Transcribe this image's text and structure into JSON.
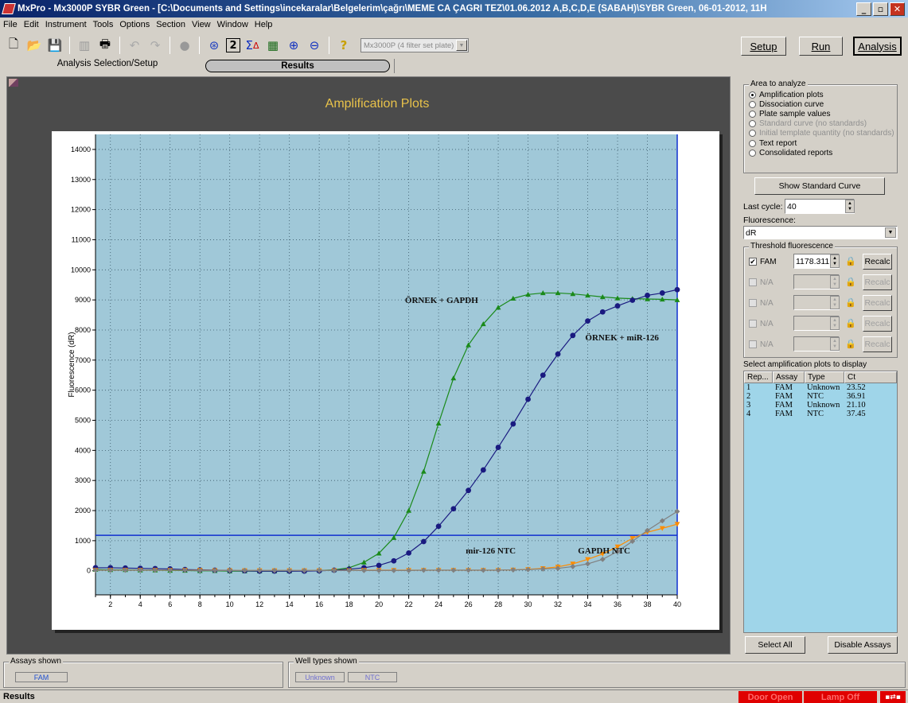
{
  "window": {
    "title": "MxPro - Mx3000P SYBR Green - [C:\\Documents and Settings\\incekaralar\\Belgelerim\\çağrı\\MEME CA ÇAĞRI TEZ\\01.06.2012 A,B,C,D,E (SABAH)\\SYBR Green, 06-01-2012, 11H",
    "minimize": "_",
    "maximize": "▫",
    "close": "✕"
  },
  "menu": [
    "File",
    "Edit",
    "Instrument",
    "Tools",
    "Options",
    "Section",
    "View",
    "Window",
    "Help"
  ],
  "toolbar": {
    "icons": [
      "new-file-icon",
      "open-folder-icon",
      "save-icon",
      "export-icon",
      "print-icon",
      "undo-icon",
      "redo-icon",
      "lamp-icon",
      "plate-icon",
      "help-number-icon",
      "sigma-delta-icon",
      "grid-icon",
      "zoom-in-icon",
      "zoom-out-icon",
      "question-icon"
    ],
    "plate_select": "Mx3000P (4 filter set plate)"
  },
  "modes": {
    "setup": "Setup",
    "run": "Run",
    "analysis": "Analysis"
  },
  "tabs": {
    "setup": "Analysis Selection/Setup",
    "results": "Results"
  },
  "chart_data": {
    "type": "line",
    "title": "Amplification Plots",
    "xlabel": "",
    "ylabel": "Fluorescence (dR)",
    "xlim": [
      1,
      40
    ],
    "ylim": [
      -800,
      14500
    ],
    "xticks": [
      2,
      4,
      6,
      8,
      10,
      12,
      14,
      16,
      18,
      20,
      22,
      24,
      26,
      28,
      30,
      32,
      34,
      36,
      38,
      40
    ],
    "yticks": [
      0,
      1000,
      2000,
      3000,
      4000,
      5000,
      6000,
      7000,
      8000,
      9000,
      10000,
      11000,
      12000,
      13000,
      14000
    ],
    "grid": true,
    "plot_background": "#a0c8d8",
    "threshold": {
      "value": 1178.311,
      "color": "#1030d0"
    },
    "x": [
      1,
      2,
      3,
      4,
      5,
      6,
      7,
      8,
      9,
      10,
      11,
      12,
      13,
      14,
      15,
      16,
      17,
      18,
      19,
      20,
      21,
      22,
      23,
      24,
      25,
      26,
      27,
      28,
      29,
      30,
      31,
      32,
      33,
      34,
      35,
      36,
      37,
      38,
      39,
      40
    ],
    "series": [
      {
        "color": "#1a8a1a",
        "marker": "triangle-up",
        "values": [
          40,
          30,
          30,
          20,
          20,
          10,
          10,
          0,
          0,
          -10,
          -10,
          -10,
          -10,
          -10,
          0,
          10,
          30,
          100,
          280,
          580,
          1100,
          2000,
          3300,
          4900,
          6400,
          7500,
          8200,
          8750,
          9050,
          9180,
          9230,
          9230,
          9200,
          9150,
          9100,
          9060,
          9040,
          9030,
          9020,
          9000
        ]
      },
      {
        "color": "#1a1a80",
        "marker": "circle",
        "values": [
          100,
          100,
          90,
          80,
          70,
          60,
          40,
          30,
          20,
          10,
          0,
          -10,
          -10,
          -10,
          -10,
          0,
          20,
          50,
          100,
          180,
          330,
          590,
          970,
          1480,
          2060,
          2670,
          3350,
          4100,
          4880,
          5700,
          6500,
          7200,
          7820,
          8300,
          8600,
          8800,
          8990,
          9150,
          9230,
          9340
        ]
      },
      {
        "color": "#ff8c00",
        "marker": "triangle-down",
        "values": [
          20,
          20,
          20,
          20,
          20,
          20,
          20,
          20,
          10,
          10,
          10,
          10,
          10,
          10,
          10,
          10,
          10,
          10,
          20,
          20,
          20,
          20,
          20,
          20,
          20,
          20,
          20,
          20,
          30,
          50,
          80,
          130,
          230,
          380,
          560,
          800,
          1080,
          1280,
          1410,
          1550
        ]
      },
      {
        "color": "#808080",
        "marker": "diamond",
        "values": [
          20,
          20,
          20,
          20,
          20,
          20,
          20,
          10,
          10,
          10,
          10,
          10,
          10,
          10,
          10,
          10,
          10,
          10,
          10,
          10,
          10,
          10,
          20,
          20,
          20,
          20,
          20,
          20,
          30,
          40,
          60,
          80,
          140,
          230,
          380,
          640,
          980,
          1340,
          1660,
          1970
        ]
      }
    ],
    "annotations": [
      {
        "text": "ÖRNEK + GAPDH",
        "x": 24.2,
        "y": 8900
      },
      {
        "text": "ÖRNEK + miR-126",
        "x": 36.3,
        "y": 7650
      },
      {
        "text": "mir-126 NTC",
        "x": 27.5,
        "y": 580
      },
      {
        "text": "GAPDH NTC",
        "x": 35.1,
        "y": 580
      }
    ]
  },
  "area_to_analyze": {
    "title": "Area to analyze",
    "options": [
      {
        "label": "Amplification plots",
        "selected": true,
        "enabled": true
      },
      {
        "label": "Dissociation curve",
        "selected": false,
        "enabled": true
      },
      {
        "label": "Plate sample values",
        "selected": false,
        "enabled": true
      },
      {
        "label": "Standard curve (no standards)",
        "selected": false,
        "enabled": false
      },
      {
        "label": "Initial template quantity (no standards)",
        "selected": false,
        "enabled": false
      },
      {
        "label": "Text report",
        "selected": false,
        "enabled": true
      },
      {
        "label": "Consolidated reports",
        "selected": false,
        "enabled": true
      }
    ]
  },
  "show_standard_curve": "Show Standard Curve",
  "last_cycle": {
    "label": "Last cycle:",
    "value": "40"
  },
  "fluorescence": {
    "label": "Fluorescence:",
    "value": "dR"
  },
  "threshold_fluorescence": {
    "title": "Threshold fluorescence",
    "rows": [
      {
        "label": "FAM",
        "checked": true,
        "enabled": true,
        "value": "1178.311",
        "recalc": "Recalc"
      },
      {
        "label": "N/A",
        "checked": false,
        "enabled": false,
        "value": "",
        "recalc": "Recalc"
      },
      {
        "label": "N/A",
        "checked": false,
        "enabled": false,
        "value": "",
        "recalc": "Recalc"
      },
      {
        "label": "N/A",
        "checked": false,
        "enabled": false,
        "value": "",
        "recalc": "Recalc"
      },
      {
        "label": "N/A",
        "checked": false,
        "enabled": false,
        "value": "",
        "recalc": "Recalc"
      }
    ]
  },
  "plots_list": {
    "title": "Select amplification plots to display",
    "headers": [
      "Rep...",
      "Assay",
      "Type",
      "Ct"
    ],
    "rows": [
      [
        "1",
        "FAM",
        "Unknown",
        "23.52"
      ],
      [
        "2",
        "FAM",
        "NTC",
        "36.91"
      ],
      [
        "3",
        "FAM",
        "Unknown",
        "21.10"
      ],
      [
        "4",
        "FAM",
        "NTC",
        "37.45"
      ]
    ]
  },
  "select_all": "Select All",
  "disable_assays": "Disable Assays",
  "assays_shown": {
    "title": "Assays shown",
    "items": [
      "FAM"
    ]
  },
  "well_types_shown": {
    "title": "Well types shown",
    "items": [
      "Unknown",
      "NTC"
    ]
  },
  "status": {
    "text": "Results",
    "door": "Door Open",
    "lamp": "Lamp Off"
  }
}
